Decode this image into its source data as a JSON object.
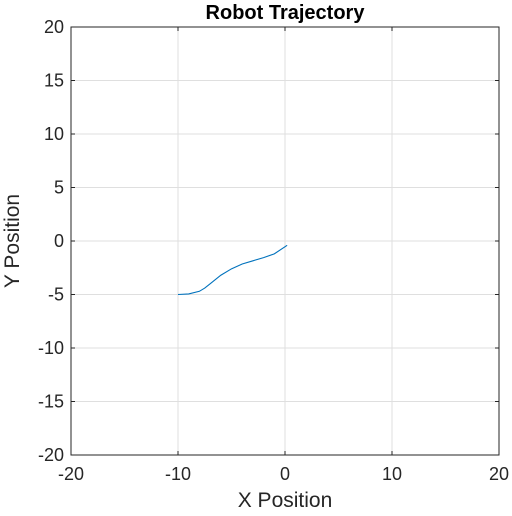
{
  "chart_data": {
    "type": "line",
    "title": "Robot Trajectory",
    "xlabel": "X Position",
    "ylabel": "Y Position",
    "xlim": [
      -20,
      20
    ],
    "ylim": [
      -20,
      20
    ],
    "xticks": [
      -20,
      -10,
      0,
      10,
      20
    ],
    "yticks": [
      -20,
      -15,
      -10,
      -5,
      0,
      5,
      10,
      15,
      20
    ],
    "xtick_labels": [
      "-20",
      "-10",
      "0",
      "10",
      "20"
    ],
    "ytick_labels": [
      "-20",
      "-15",
      "-10",
      "-5",
      "0",
      "5",
      "10",
      "15",
      "20"
    ],
    "grid": true,
    "series": [
      {
        "color": "#0072BD",
        "x": [
          -10.0,
          -9.0,
          -8.0,
          -7.5,
          -7.0,
          -6.0,
          -5.0,
          -4.0,
          -3.0,
          -2.0,
          -1.0,
          0.2
        ],
        "y": [
          -5.0,
          -4.95,
          -4.7,
          -4.4,
          -4.0,
          -3.2,
          -2.6,
          -2.15,
          -1.85,
          -1.55,
          -1.2,
          -0.4
        ]
      }
    ]
  }
}
